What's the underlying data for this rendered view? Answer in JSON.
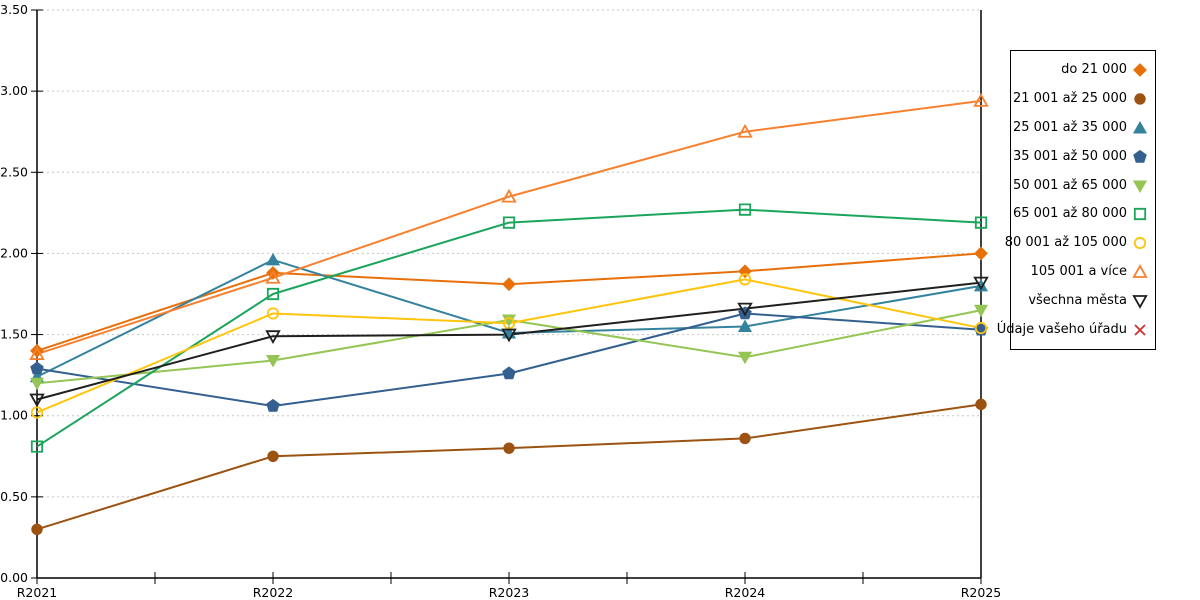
{
  "chart_data": {
    "type": "line",
    "title": "",
    "xlabel": "",
    "ylabel": "",
    "categories": [
      "R2021",
      "R2022",
      "R2023",
      "R2024",
      "R2025"
    ],
    "ylim": [
      0,
      3.5
    ],
    "ytick_step": 0.5,
    "ytick_labels": [
      "0.00",
      "0.50",
      "1.00",
      "1.50",
      "2.00",
      "2.50",
      "3.00",
      "3.50"
    ],
    "grid": "horizontal-dashed",
    "gridline_color": "#c6c6c6",
    "axis_color": "#000000",
    "legend_position": "right",
    "series": [
      {
        "name": "do 21 000",
        "color": "#E8700A",
        "marker": "diamond",
        "fill": "solid",
        "values": [
          1.4,
          1.88,
          1.81,
          1.89,
          2.0
        ]
      },
      {
        "name": "21 001 až 25 000",
        "color": "#9C5210",
        "marker": "circle",
        "fill": "solid",
        "values": [
          0.3,
          0.75,
          0.8,
          0.86,
          1.07
        ]
      },
      {
        "name": "25 001 až 35 000",
        "color": "#34839E",
        "marker": "triangle-up",
        "fill": "solid",
        "values": [
          1.24,
          1.96,
          1.51,
          1.55,
          1.8
        ]
      },
      {
        "name": "35 001 až 50 000",
        "color": "#33608F",
        "marker": "pentagon",
        "fill": "solid",
        "values": [
          1.29,
          1.06,
          1.26,
          1.63,
          1.53
        ]
      },
      {
        "name": "50 001 až 65 000",
        "color": "#95C554",
        "marker": "triangle-down",
        "fill": "solid",
        "values": [
          1.2,
          1.34,
          1.59,
          1.36,
          1.65
        ]
      },
      {
        "name": "65 001 až 80 000",
        "color": "#1BA45C",
        "marker": "square",
        "fill": "open",
        "values": [
          0.81,
          1.75,
          2.19,
          2.27,
          2.19
        ]
      },
      {
        "name": "80 001 až 105 000",
        "color": "#FFC40C",
        "marker": "circle",
        "fill": "open",
        "values": [
          1.02,
          1.63,
          1.57,
          1.84,
          1.54
        ]
      },
      {
        "name": "105 001 a více",
        "color": "#F8802E",
        "marker": "triangle-up",
        "fill": "open",
        "values": [
          1.38,
          1.85,
          2.35,
          2.75,
          2.94
        ]
      },
      {
        "name": "všechna města",
        "color": "#1F1F1F",
        "marker": "triangle-down",
        "fill": "open",
        "values": [
          1.1,
          1.49,
          1.5,
          1.66,
          1.82
        ]
      },
      {
        "name": "Údaje vašeho úřadu",
        "color": "#D32F2F",
        "marker": "x-cross",
        "fill": "open",
        "values": []
      }
    ]
  }
}
